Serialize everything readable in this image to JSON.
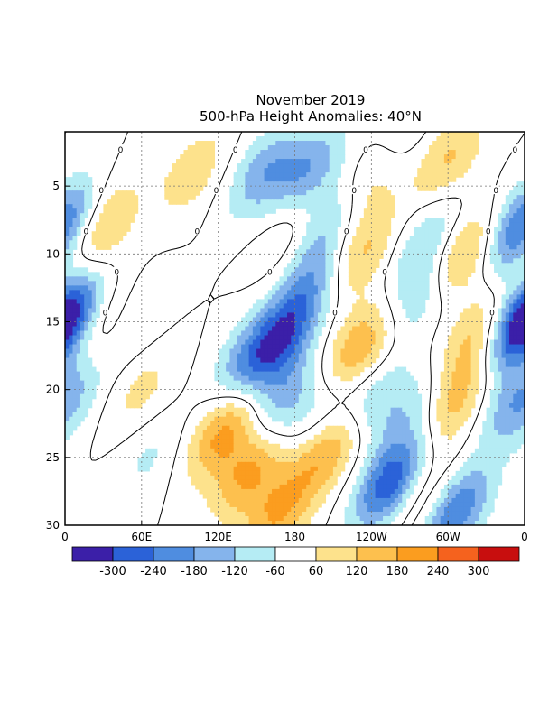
{
  "title_line1": "November 2019",
  "title_line2": "500-hPa Height Anomalies: 40°N",
  "chart_data": {
    "type": "heatmap",
    "title": "November 2019",
    "subtitle": "500-hPa Height Anomalies: 40°N",
    "x_ticks": [
      "0",
      "60E",
      "120E",
      "180",
      "120W",
      "60W",
      "0"
    ],
    "y_ticks": [
      "5",
      "10",
      "15",
      "20",
      "25",
      "30"
    ],
    "y_range": [
      1,
      30
    ],
    "y_reversed": true,
    "x_range": [
      0,
      360
    ],
    "grid": true,
    "colorbar": {
      "labels": [
        "-300",
        "-240",
        "-180",
        "-120",
        "-60",
        "60",
        "120",
        "180",
        "240",
        "300"
      ],
      "colors": [
        "#3b1fa8",
        "#2b62d8",
        "#4f8de0",
        "#85b4ec",
        "#b5ecf4",
        "#ffffff",
        "#fde28c",
        "#fdc04e",
        "#fb9d1f",
        "#f5621e",
        "#c80e0e"
      ]
    },
    "features": [
      {
        "sign": "neg",
        "x": 0,
        "y": 8,
        "amp": 150
      },
      {
        "sign": "neg",
        "x": 0,
        "y": 15,
        "amp": 250
      },
      {
        "sign": "neg",
        "x": 3,
        "y": 21,
        "amp": 80
      },
      {
        "sign": "pos",
        "x": 27,
        "y": 8,
        "amp": 160
      },
      {
        "sign": "pos",
        "x": 28,
        "y": 15,
        "amp": 130
      },
      {
        "sign": "neg",
        "x": 52,
        "y": 15,
        "amp": 90
      },
      {
        "sign": "neg",
        "x": 65,
        "y": 25,
        "amp": 70
      },
      {
        "sign": "pos",
        "x": 60,
        "y": 20,
        "amp": 80
      },
      {
        "sign": "pos",
        "x": 100,
        "y": 4,
        "amp": 100
      },
      {
        "sign": "pos",
        "x": 180,
        "y": 8,
        "amp": 110
      },
      {
        "sign": "neg",
        "x": 155,
        "y": 4,
        "amp": 160
      },
      {
        "sign": "neg",
        "x": 190,
        "y": 4,
        "amp": 180
      },
      {
        "sign": "neg",
        "x": 200,
        "y": 8,
        "amp": 140
      },
      {
        "sign": "neg",
        "x": 195,
        "y": 12,
        "amp": 130
      },
      {
        "sign": "neg",
        "x": 175,
        "y": 15,
        "amp": 110
      },
      {
        "sign": "neg",
        "x": 165,
        "y": 17,
        "amp": 190
      },
      {
        "sign": "neg",
        "x": 140,
        "y": 18,
        "amp": 130
      },
      {
        "sign": "neg",
        "x": 170,
        "y": 21,
        "amp": 150
      },
      {
        "sign": "neg",
        "x": 205,
        "y": 22,
        "amp": 110
      },
      {
        "sign": "pos",
        "x": 125,
        "y": 23,
        "amp": 210
      },
      {
        "sign": "pos",
        "x": 145,
        "y": 26,
        "amp": 190
      },
      {
        "sign": "pos",
        "x": 168,
        "y": 29,
        "amp": 180
      },
      {
        "sign": "pos",
        "x": 208,
        "y": 24,
        "amp": 220
      },
      {
        "sign": "pos",
        "x": 230,
        "y": 10,
        "amp": 150
      },
      {
        "sign": "pos",
        "x": 230,
        "y": 17,
        "amp": 190
      },
      {
        "sign": "pos",
        "x": 245,
        "y": 4,
        "amp": 110
      },
      {
        "sign": "neg",
        "x": 240,
        "y": 21,
        "amp": 120
      },
      {
        "sign": "neg",
        "x": 255,
        "y": 27,
        "amp": 300
      },
      {
        "sign": "neg",
        "x": 260,
        "y": 2,
        "amp": 90
      },
      {
        "sign": "neg",
        "x": 285,
        "y": 9,
        "amp": 130
      },
      {
        "sign": "neg",
        "x": 278,
        "y": 13,
        "amp": 120
      },
      {
        "sign": "pos",
        "x": 300,
        "y": 3,
        "amp": 130
      },
      {
        "sign": "pos",
        "x": 310,
        "y": 10,
        "amp": 190
      },
      {
        "sign": "pos",
        "x": 325,
        "y": 16,
        "amp": 160
      },
      {
        "sign": "pos",
        "x": 305,
        "y": 21,
        "amp": 150
      },
      {
        "sign": "pos",
        "x": 278,
        "y": 28,
        "amp": 120
      },
      {
        "sign": "neg",
        "x": 270,
        "y": 22,
        "amp": 100
      },
      {
        "sign": "neg",
        "x": 305,
        "y": 29,
        "amp": 250
      },
      {
        "sign": "neg",
        "x": 355,
        "y": 8,
        "amp": 130
      },
      {
        "sign": "neg",
        "x": 358,
        "y": 15,
        "amp": 200
      },
      {
        "sign": "neg",
        "x": 350,
        "y": 21,
        "amp": 120
      }
    ]
  },
  "icons": {
    "contour_label_glyph": "0"
  }
}
